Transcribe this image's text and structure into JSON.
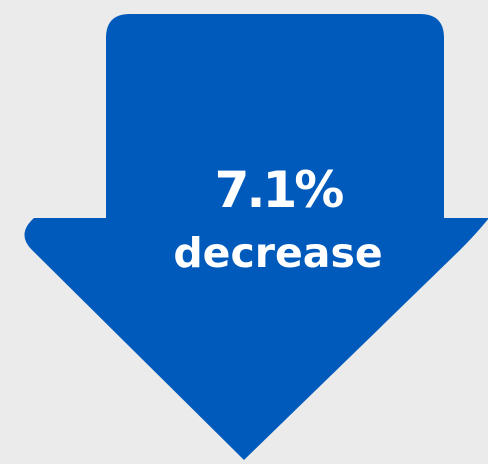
{
  "background_color": "#ebebeb",
  "arrow": {
    "icon": "down-arrow-icon",
    "color": "#005abb",
    "direction": "down"
  },
  "stat": {
    "value": "7.1%",
    "label": "decrease"
  }
}
